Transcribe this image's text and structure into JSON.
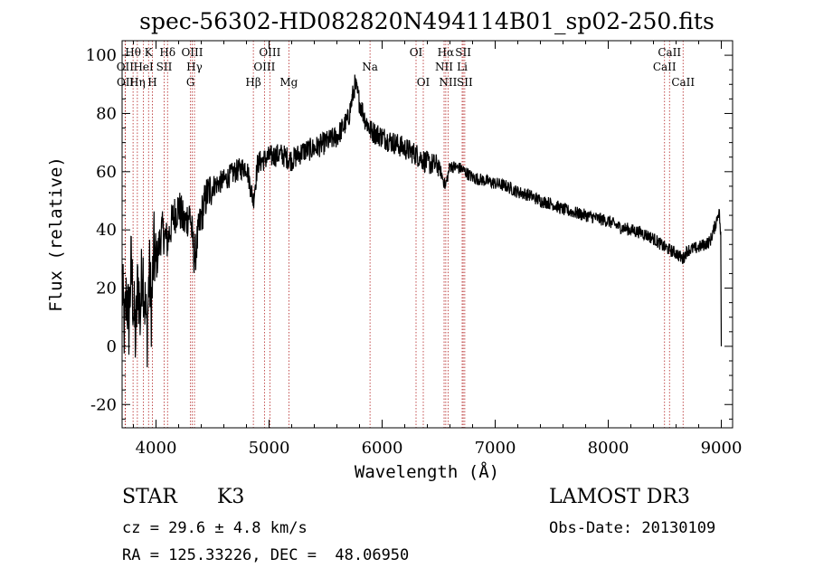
{
  "chart_data": {
    "type": "line",
    "title": "spec-56302-HD082820N494114B01_sp02-250.fits",
    "xlabel": "Wavelength (Å)",
    "ylabel": "Flux (relative)",
    "xlim": [
      3700,
      9100
    ],
    "ylim": [
      -28,
      105
    ],
    "xticks": [
      4000,
      5000,
      6000,
      7000,
      8000,
      9000
    ],
    "yticks": [
      -20,
      0,
      20,
      40,
      60,
      80,
      100
    ],
    "series": [
      {
        "name": "spectrum",
        "anchors": [
          [
            3700,
            22
          ],
          [
            3720,
            5
          ],
          [
            3740,
            18
          ],
          [
            3760,
            8
          ],
          [
            3780,
            28
          ],
          [
            3800,
            14
          ],
          [
            3820,
            2
          ],
          [
            3840,
            24
          ],
          [
            3860,
            10
          ],
          [
            3880,
            30
          ],
          [
            3900,
            16
          ],
          [
            3920,
            4
          ],
          [
            3940,
            26
          ],
          [
            3960,
            12
          ],
          [
            3980,
            33
          ],
          [
            4000,
            28
          ],
          [
            4050,
            40
          ],
          [
            4100,
            36
          ],
          [
            4150,
            44
          ],
          [
            4200,
            48
          ],
          [
            4250,
            42
          ],
          [
            4300,
            46
          ],
          [
            4340,
            30
          ],
          [
            4400,
            45
          ],
          [
            4450,
            52
          ],
          [
            4500,
            55
          ],
          [
            4600,
            57
          ],
          [
            4700,
            60
          ],
          [
            4800,
            62
          ],
          [
            4860,
            50
          ],
          [
            4900,
            63
          ],
          [
            5000,
            65
          ],
          [
            5100,
            66
          ],
          [
            5200,
            64
          ],
          [
            5300,
            67
          ],
          [
            5400,
            68
          ],
          [
            5500,
            70
          ],
          [
            5600,
            72
          ],
          [
            5700,
            78
          ],
          [
            5760,
            90
          ],
          [
            5800,
            84
          ],
          [
            5850,
            78
          ],
          [
            5900,
            74
          ],
          [
            6000,
            72
          ],
          [
            6100,
            70
          ],
          [
            6200,
            68
          ],
          [
            6300,
            66
          ],
          [
            6400,
            63
          ],
          [
            6500,
            62
          ],
          [
            6560,
            55
          ],
          [
            6600,
            62
          ],
          [
            6700,
            61
          ],
          [
            6800,
            58
          ],
          [
            6900,
            57
          ],
          [
            7000,
            56
          ],
          [
            7100,
            55
          ],
          [
            7200,
            53
          ],
          [
            7300,
            52
          ],
          [
            7400,
            50
          ],
          [
            7500,
            49
          ],
          [
            7600,
            47
          ],
          [
            7700,
            46
          ],
          [
            7800,
            45
          ],
          [
            7900,
            44
          ],
          [
            8000,
            43
          ],
          [
            8100,
            41
          ],
          [
            8200,
            40
          ],
          [
            8300,
            39
          ],
          [
            8400,
            37
          ],
          [
            8500,
            34
          ],
          [
            8550,
            33
          ],
          [
            8600,
            32
          ],
          [
            8660,
            30
          ],
          [
            8700,
            33
          ],
          [
            8800,
            34
          ],
          [
            8900,
            36
          ],
          [
            8950,
            42
          ],
          [
            8980,
            47
          ],
          [
            8995,
            38
          ],
          [
            9000,
            0
          ]
        ]
      }
    ],
    "line_markers": [
      {
        "label": "Hθ",
        "wavelength": 3797,
        "row": 1
      },
      {
        "label": "OII",
        "wavelength": 3727,
        "row": 2
      },
      {
        "label": "OII",
        "wavelength": 3729,
        "row": 3
      },
      {
        "label": "Hη",
        "wavelength": 3835,
        "row": 3
      },
      {
        "label": "HeI",
        "wavelength": 3889,
        "row": 2
      },
      {
        "label": "K",
        "wavelength": 3934,
        "row": 1
      },
      {
        "label": "H",
        "wavelength": 3968,
        "row": 3
      },
      {
        "label": "SII",
        "wavelength": 4072,
        "row": 2
      },
      {
        "label": "Hδ",
        "wavelength": 4102,
        "row": 1
      },
      {
        "label": "OIII",
        "wavelength": 4320,
        "row": 1
      },
      {
        "label": "Hγ",
        "wavelength": 4340,
        "row": 2
      },
      {
        "label": "G",
        "wavelength": 4305,
        "row": 3
      },
      {
        "label": "Hβ",
        "wavelength": 4861,
        "row": 3
      },
      {
        "label": "OIII",
        "wavelength": 4959,
        "row": 2
      },
      {
        "label": "OIII",
        "wavelength": 5007,
        "row": 1
      },
      {
        "label": "Mg",
        "wavelength": 5175,
        "row": 3
      },
      {
        "label": "Na",
        "wavelength": 5893,
        "row": 2
      },
      {
        "label": "OI",
        "wavelength": 6300,
        "row": 1
      },
      {
        "label": "OI",
        "wavelength": 6364,
        "row": 3
      },
      {
        "label": "Hα",
        "wavelength": 6563,
        "row": 1
      },
      {
        "label": "NII",
        "wavelength": 6548,
        "row": 2
      },
      {
        "label": "NII",
        "wavelength": 6583,
        "row": 3
      },
      {
        "label": "SII",
        "wavelength": 6717,
        "row": 1
      },
      {
        "label": "Li",
        "wavelength": 6708,
        "row": 2
      },
      {
        "label": "SII",
        "wavelength": 6731,
        "row": 3
      },
      {
        "label": "CaII",
        "wavelength": 8542,
        "row": 1
      },
      {
        "label": "CaII",
        "wavelength": 8498,
        "row": 2
      },
      {
        "label": "CaII",
        "wavelength": 8662,
        "row": 3
      }
    ]
  },
  "footer": {
    "class_label": "STAR",
    "subclass": "K3",
    "redshift": "cz = 29.6 ± 4.8 km/s",
    "coords": "RA = 125.33226, DEC =  48.06950",
    "survey": "LAMOST DR3",
    "obs_date": "Obs-Date: 20130109"
  }
}
